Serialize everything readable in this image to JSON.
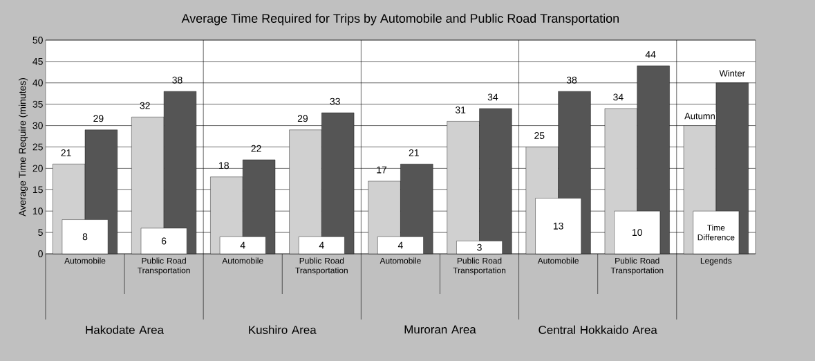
{
  "chart_data": {
    "type": "bar",
    "title": "Average Time Required for Trips by Automobile and Public Road Transportation",
    "ylabel": "Average Time Require (minutes)",
    "categories": [
      "Automobile",
      "Public Road Transportation",
      "Automobile",
      "Public Road Transportation",
      "Automobile",
      "Public Road Transportation",
      "Automobile",
      "Public Road Transportation",
      "Legends"
    ],
    "series": [
      {
        "name": "Autumn",
        "color": "#d0d0d0",
        "values": [
          21,
          32,
          18,
          29,
          17,
          31,
          25,
          34,
          30
        ],
        "value_labels": [
          "21",
          "32",
          "18",
          "29",
          "17",
          "31",
          "25",
          "34",
          null
        ]
      },
      {
        "name": "Winter",
        "color": "#555555",
        "values": [
          29,
          38,
          22,
          33,
          21,
          34,
          38,
          44,
          40
        ],
        "value_labels": [
          "29",
          "38",
          "22",
          "33",
          "21",
          "34",
          "38",
          "44",
          null
        ]
      },
      {
        "name": "Time Difference",
        "color": "#ffffff",
        "values": [
          8,
          6,
          4,
          4,
          4,
          3,
          13,
          10,
          10
        ],
        "value_labels": [
          "8",
          "6",
          "4",
          "4",
          "4",
          "3",
          "13",
          "10",
          null
        ]
      }
    ],
    "ylim": [
      0,
      50
    ],
    "yticks": [
      0,
      5,
      10,
      15,
      20,
      25,
      30,
      35,
      40,
      45,
      50
    ],
    "grid": true,
    "annotations": [
      "Hakodate Area",
      "Kushiro Area",
      "Muroran Area",
      "Central Hokkaido Area"
    ]
  }
}
